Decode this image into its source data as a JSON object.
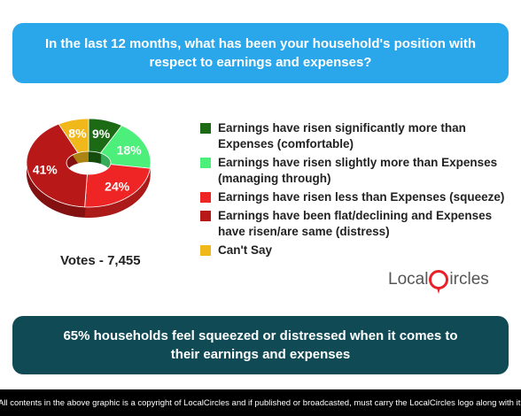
{
  "question": "In the last 12 months, what has been your household's position with respect to earnings and expenses?",
  "votes_label": "Votes - 7,455",
  "finding": "65% households feel squeezed or distressed when it comes to their earnings and expenses",
  "footer": "All contents in the above graphic is a copyright of LocalCircles and if published or broadcasted, must carry the LocalCircles logo along with it.",
  "logo": {
    "part1": "Local",
    "part2": "ircles",
    "icon": "map-pin-icon"
  },
  "chart_data": {
    "type": "pie",
    "categories": [
      "Earnings have risen significantly more than Expenses (comfortable)",
      "Earnings have risen slightly more than Expenses (managing through)",
      "Earnings have risen less than Expenses (squeeze)",
      "Earnings have been flat/declining and Expenses have risen/are same (distress)",
      "Can't Say"
    ],
    "values": [
      9,
      18,
      24,
      41,
      8
    ],
    "labels": [
      "9%",
      "18%",
      "24%",
      "41%",
      "8%"
    ],
    "colors": [
      "#1d6a14",
      "#4cef7a",
      "#ef2424",
      "#b81818",
      "#f0b81a"
    ],
    "legend_position": "right"
  }
}
